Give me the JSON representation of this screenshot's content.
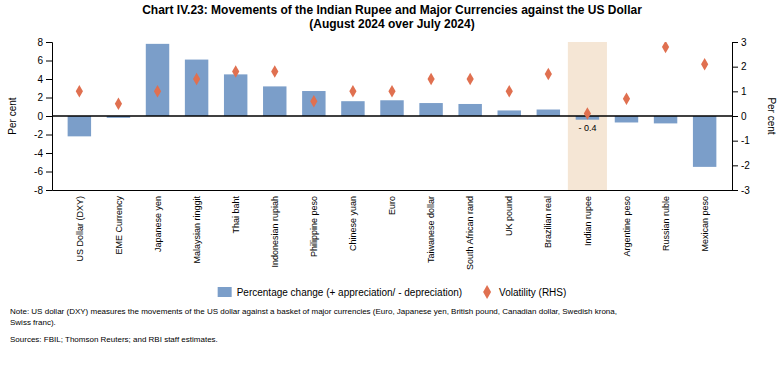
{
  "chart_data": {
    "type": "bar",
    "title": "Chart IV.23: Movements of the Indian Rupee and Major Currencies against the US Dollar\n(August 2024 over July 2024)",
    "categories": [
      "US Dollar (DXY)",
      "EME Currency",
      "Japanese yen",
      "Malaysian ringgit",
      "Thai baht",
      "Indonesian rupiah",
      "Philippine peso",
      "Chinese yuan",
      "Euro",
      "Taiwanese dollar",
      "South African rand",
      "UK pound",
      "Brazilian real",
      "Indian rupee",
      "Argentine peso",
      "Russian ruble",
      "Mexican peso"
    ],
    "series": [
      {
        "name": "Percentage change (+ appreciation/ - depreciation)",
        "type": "bar",
        "color": "#7b9ec9",
        "values": [
          -2.2,
          -0.2,
          7.8,
          6.1,
          4.5,
          3.2,
          2.7,
          1.6,
          1.7,
          1.4,
          1.3,
          0.6,
          0.7,
          -0.4,
          -0.7,
          -0.8,
          -5.5
        ]
      },
      {
        "name": "Volatility (RHS)",
        "type": "scatter",
        "marker": "diamond",
        "color": "#e07050",
        "axis": "y2",
        "values": [
          1.0,
          0.5,
          1.0,
          1.5,
          1.8,
          1.8,
          0.6,
          1.0,
          1.0,
          1.5,
          1.5,
          1.0,
          1.7,
          0.1,
          0.7,
          2.8,
          2.1
        ]
      }
    ],
    "ylim": [
      -8,
      8
    ],
    "yticks": [
      -8,
      -6,
      -4,
      -2,
      0,
      2,
      4,
      6,
      8
    ],
    "y2lim": [
      -3,
      3
    ],
    "y2ticks": [
      -3,
      -2,
      -1,
      0,
      1,
      2,
      3
    ],
    "ylabel": "Per cent",
    "y2label": "Per cent",
    "annotations": [
      {
        "type": "band",
        "x": "Indian rupee",
        "color": "#f5e6d5"
      },
      {
        "type": "text",
        "x": "Indian rupee",
        "text": "- 0.4"
      }
    ],
    "note": "Note: US dollar (DXY) measures the movements of the US dollar against a basket of major currencies (Euro, Japanese yen, British pound, Canadian dollar, Swedish krona,\nSwiss franc).",
    "sources": "Sources: FBIL; Thomson Reuters; and RBI staff estimates."
  }
}
